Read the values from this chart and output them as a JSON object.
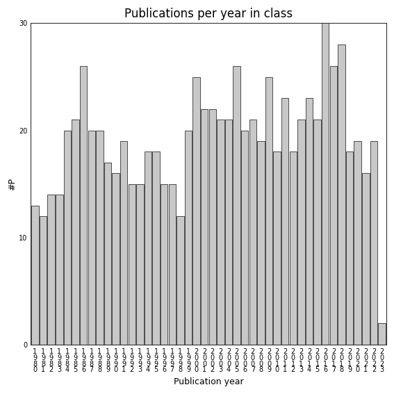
{
  "title": "Publications per year in class",
  "xlabel": "Publication year",
  "ylabel": "#P",
  "bar_color": "#c8c8c8",
  "bar_edge_color": "#333333",
  "background_color": "#ffffff",
  "ylim": [
    0,
    30
  ],
  "yticks": [
    0,
    10,
    20,
    30
  ],
  "categories": [
    "1\n9\n8\n0",
    "1\n9\n8\n1",
    "1\n9\n8\n2",
    "1\n9\n8\n3",
    "1\n9\n8\n4",
    "1\n9\n8\n5",
    "1\n9\n8\n6",
    "1\n9\n8\n7",
    "1\n9\n8\n8",
    "1\n9\n8\n9",
    "1\n9\n9\n0",
    "1\n9\n9\n1",
    "1\n9\n9\n2",
    "1\n9\n9\n3",
    "1\n9\n9\n4",
    "1\n9\n9\n5",
    "1\n9\n9\n6",
    "1\n9\n9\n7",
    "1\n9\n9\n8",
    "1\n9\n9\n9",
    "2\n0\n0\n0",
    "2\n0\n0\n1",
    "2\n0\n0\n2",
    "2\n0\n0\n3",
    "2\n0\n0\n4",
    "2\n0\n0\n5",
    "2\n0\n0\n6",
    "2\n0\n0\n7",
    "2\n0\n0\n8",
    "2\n0\n0\n9",
    "2\n0\n1\n0",
    "2\n0\n1\n1",
    "2\n0\n1\n2",
    "2\n0\n1\n3",
    "2\n0\n1\n4",
    "2\n0\n1\n5",
    "2\n0\n1\n6",
    "2\n0\n1\n7",
    "2\n0\n1\n8",
    "2\n0\n1\n9",
    "2\n0\n2\n0",
    "2\n0\n2\n1",
    "2\n0\n2\n2",
    "2\n0\n2\n3"
  ],
  "values": [
    13,
    12,
    14,
    14,
    20,
    21,
    26,
    20,
    20,
    17,
    16,
    19,
    15,
    15,
    18,
    18,
    15,
    15,
    12,
    20,
    25,
    22,
    22,
    21,
    21,
    26,
    20,
    21,
    19,
    25,
    18,
    23,
    18,
    21,
    23,
    21,
    30,
    26,
    28,
    18,
    19,
    16,
    19,
    2
  ],
  "title_fontsize": 12,
  "label_fontsize": 9,
  "tick_fontsize": 7
}
